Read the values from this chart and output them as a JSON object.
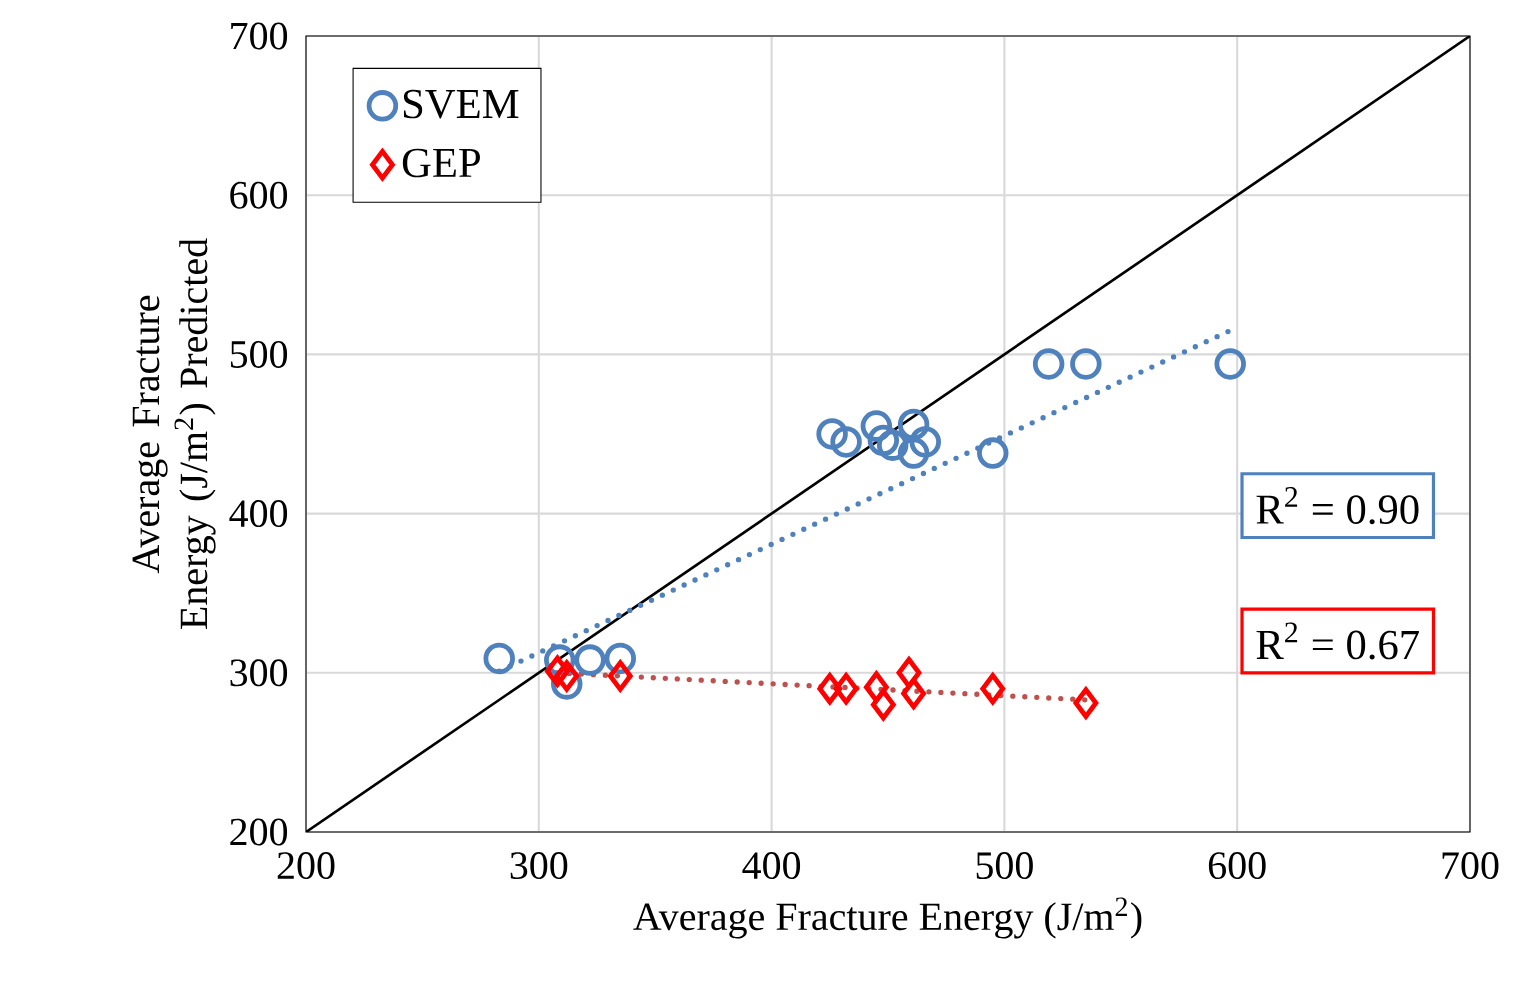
{
  "chart_data": {
    "type": "scatter",
    "xlabel": "Average Fracture Energy (J/m$^{2}$)",
    "ylabel": "Average Fracture Energy (J/m$^{2}$) Predicted",
    "xlim": [
      200,
      700
    ],
    "ylim": [
      200,
      700
    ],
    "xticks": [
      200,
      300,
      400,
      500,
      600,
      700
    ],
    "yticks": [
      200,
      300,
      400,
      500,
      600,
      700
    ],
    "grid": true,
    "legend": "top left",
    "annotations": [
      "R$^{2}$ = 0.90",
      "R$^{2}$ = 0.67"
    ],
    "series": [
      {
        "name": "SVEM",
        "type": "scatter",
        "marker": "circle",
        "color": "#4f81bd",
        "x": [
          283,
          309,
          312,
          322,
          335,
          426,
          432,
          445,
          448,
          452,
          461,
          461,
          466,
          495,
          519,
          535,
          597
        ],
        "values": [
          309,
          308,
          293,
          308,
          309,
          450,
          445,
          455,
          446,
          443,
          456,
          438,
          445,
          438,
          494,
          494,
          494
        ]
      },
      {
        "name": "GEP",
        "type": "scatter",
        "marker": "diamond",
        "color": "#ff0000",
        "x": [
          308,
          312,
          335,
          425,
          432,
          445,
          448,
          459,
          461,
          495,
          535
        ],
        "values": [
          301,
          298,
          298,
          290,
          290,
          291,
          280,
          300,
          287,
          290,
          281
        ]
      },
      {
        "type": "line",
        "marker": "none",
        "line_style": "solid",
        "color": "#000000",
        "x": [
          200,
          700
        ],
        "values": [
          200,
          700
        ]
      },
      {
        "type": "line",
        "marker": "none",
        "line_style": "dotted",
        "color": "#4f81bd",
        "x": [
          283,
          597
        ],
        "values": [
          301,
          515
        ]
      },
      {
        "type": "line",
        "marker": "none",
        "line_style": "dotted",
        "color": "#c0504d",
        "x": [
          308,
          535
        ],
        "values": [
          300,
          283
        ]
      }
    ]
  }
}
